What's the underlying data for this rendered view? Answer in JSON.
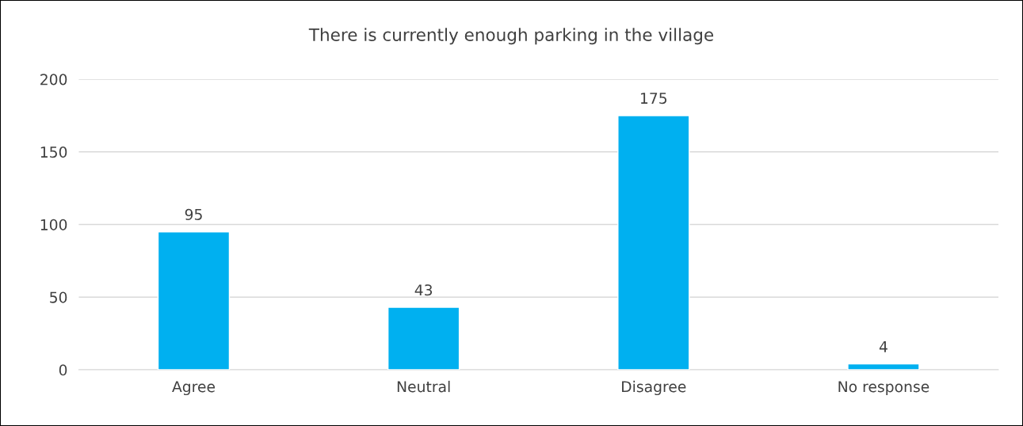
{
  "chart_data": {
    "type": "bar",
    "title": "There is currently enough parking in the village",
    "categories": [
      "Agree",
      "Neutral",
      "Disagree",
      "No response"
    ],
    "values": [
      95,
      43,
      175,
      4
    ],
    "color": "#00b0f0",
    "ylim": [
      0,
      200
    ],
    "yticks": [
      0,
      50,
      100,
      150,
      200
    ],
    "grid": "y",
    "data_labels": true
  }
}
